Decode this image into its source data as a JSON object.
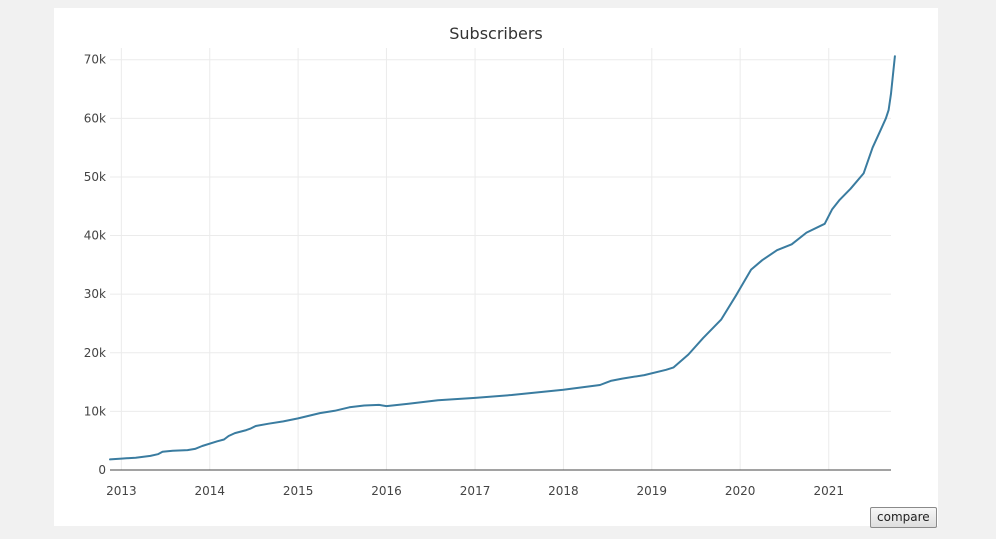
{
  "chart_data": {
    "type": "line",
    "title": "Subscribers",
    "xlabel": "",
    "ylabel": "",
    "x_ticks": [
      "2013",
      "2014",
      "2015",
      "2016",
      "2017",
      "2018",
      "2019",
      "2020",
      "2021"
    ],
    "y_ticks": [
      "0",
      "10k",
      "20k",
      "30k",
      "40k",
      "50k",
      "60k",
      "70k"
    ],
    "xlim": [
      "2012-11-15",
      "2021-09-15"
    ],
    "ylim": [
      0,
      72000
    ],
    "grid": true,
    "legend": "none",
    "series": [
      {
        "name": "",
        "color": "#3a7ca0",
        "points": [
          [
            "2012-11-15",
            1800
          ],
          [
            "2013-01-01",
            1950
          ],
          [
            "2013-03-01",
            2100
          ],
          [
            "2013-05-01",
            2400
          ],
          [
            "2013-06-01",
            2700
          ],
          [
            "2013-06-20",
            3100
          ],
          [
            "2013-08-01",
            3300
          ],
          [
            "2013-10-01",
            3400
          ],
          [
            "2013-11-01",
            3600
          ],
          [
            "2013-12-01",
            4100
          ],
          [
            "2014-02-01",
            4900
          ],
          [
            "2014-03-01",
            5200
          ],
          [
            "2014-03-20",
            5800
          ],
          [
            "2014-04-15",
            6300
          ],
          [
            "2014-06-01",
            6800
          ],
          [
            "2014-06-20",
            7100
          ],
          [
            "2014-07-10",
            7500
          ],
          [
            "2014-09-01",
            7900
          ],
          [
            "2014-11-01",
            8300
          ],
          [
            "2015-01-01",
            8800
          ],
          [
            "2015-04-01",
            9700
          ],
          [
            "2015-06-01",
            10100
          ],
          [
            "2015-08-01",
            10700
          ],
          [
            "2015-10-01",
            11000
          ],
          [
            "2015-12-01",
            11100
          ],
          [
            "2016-01-01",
            10900
          ],
          [
            "2016-04-01",
            11300
          ],
          [
            "2016-08-01",
            11900
          ],
          [
            "2017-01-01",
            12300
          ],
          [
            "2017-06-01",
            12800
          ],
          [
            "2018-01-01",
            13700
          ],
          [
            "2018-06-01",
            14500
          ],
          [
            "2018-07-15",
            15200
          ],
          [
            "2018-09-01",
            15600
          ],
          [
            "2018-12-01",
            16200
          ],
          [
            "2019-03-01",
            17100
          ],
          [
            "2019-04-01",
            17500
          ],
          [
            "2019-06-01",
            19700
          ],
          [
            "2019-08-01",
            22500
          ],
          [
            "2019-10-15",
            25700
          ],
          [
            "2019-12-15",
            29800
          ],
          [
            "2020-01-01",
            31000
          ],
          [
            "2020-02-15",
            34200
          ],
          [
            "2020-04-01",
            35800
          ],
          [
            "2020-06-01",
            37500
          ],
          [
            "2020-08-01",
            38500
          ],
          [
            "2020-10-01",
            40500
          ],
          [
            "2020-12-15",
            42000
          ],
          [
            "2021-01-15",
            44500
          ],
          [
            "2021-02-15",
            46100
          ],
          [
            "2021-04-01",
            48000
          ],
          [
            "2021-05-25",
            50600
          ],
          [
            "2021-07-01",
            55000
          ],
          [
            "2021-08-01",
            57800
          ],
          [
            "2021-08-25",
            60000
          ],
          [
            "2021-09-05",
            61400
          ],
          [
            "2021-09-15",
            64200
          ],
          [
            "2021-10-01",
            70600
          ]
        ]
      }
    ]
  },
  "controls": {
    "compare_label": "compare"
  }
}
